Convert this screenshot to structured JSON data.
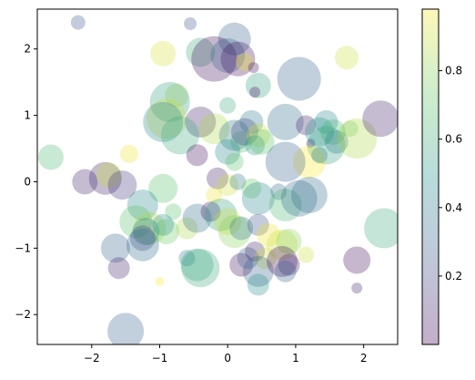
{
  "chart_data": {
    "type": "scatter",
    "title": "",
    "xlabel": "",
    "ylabel": "",
    "xlim": [
      -2.8,
      2.5
    ],
    "ylim": [
      -2.45,
      2.6
    ],
    "xticks": [
      -2,
      -1,
      0,
      1,
      2
    ],
    "xtick_labels": [
      "−2",
      "−1",
      "0",
      "1",
      "2"
    ],
    "yticks": [
      -2,
      -1,
      0,
      1,
      2
    ],
    "ytick_labels": [
      "−2",
      "−1",
      "0",
      "1",
      "2"
    ],
    "grid": false,
    "alpha": 0.3,
    "colormap": "viridis",
    "colorbar": {
      "range": [
        0.0,
        0.98
      ],
      "ticks": [
        0.2,
        0.4,
        0.6,
        0.8
      ],
      "tick_labels": [
        "0.2",
        "0.4",
        "0.6",
        "0.8"
      ]
    },
    "points": [
      {
        "x": -2.2,
        "y": 2.4,
        "c": 0.25,
        "s": 0.25
      },
      {
        "x": -0.55,
        "y": 2.38,
        "c": 0.25,
        "s": 0.2
      },
      {
        "x": 0.1,
        "y": 2.15,
        "c": 0.3,
        "s": 0.75
      },
      {
        "x": -0.95,
        "y": 1.93,
        "c": 0.92,
        "s": 0.55
      },
      {
        "x": -0.4,
        "y": 1.95,
        "c": 0.6,
        "s": 0.65
      },
      {
        "x": -0.2,
        "y": 1.85,
        "c": 0.05,
        "s": 1.1
      },
      {
        "x": 0.0,
        "y": 1.9,
        "c": 0.3,
        "s": 0.8
      },
      {
        "x": 0.15,
        "y": 1.85,
        "c": 0.05,
        "s": 0.8
      },
      {
        "x": 0.25,
        "y": 1.8,
        "c": 0.95,
        "s": 0.35
      },
      {
        "x": 1.75,
        "y": 1.87,
        "c": 0.9,
        "s": 0.5
      },
      {
        "x": 0.38,
        "y": 1.72,
        "c": 0.03,
        "s": 0.15
      },
      {
        "x": 1.05,
        "y": 1.55,
        "c": 0.3,
        "s": 1.05
      },
      {
        "x": 0.45,
        "y": 1.45,
        "c": 0.55,
        "s": 0.55
      },
      {
        "x": 0.4,
        "y": 1.35,
        "c": 0.05,
        "s": 0.15
      },
      {
        "x": -0.75,
        "y": 1.3,
        "c": 0.85,
        "s": 0.5
      },
      {
        "x": -0.85,
        "y": 1.2,
        "c": 0.55,
        "s": 0.95
      },
      {
        "x": 0.0,
        "y": 1.15,
        "c": 0.6,
        "s": 0.3
      },
      {
        "x": -0.9,
        "y": 0.95,
        "c": 0.9,
        "s": 0.95
      },
      {
        "x": -0.95,
        "y": 0.9,
        "c": 0.45,
        "s": 0.95
      },
      {
        "x": -0.4,
        "y": 0.9,
        "c": 0.1,
        "s": 0.7
      },
      {
        "x": -0.7,
        "y": 0.7,
        "c": 0.6,
        "s": 0.9
      },
      {
        "x": -0.2,
        "y": 0.8,
        "c": 0.85,
        "s": 0.7
      },
      {
        "x": 0.2,
        "y": 0.6,
        "c": 0.7,
        "s": 0.45
      },
      {
        "x": 0.35,
        "y": 0.9,
        "c": 0.4,
        "s": 0.5
      },
      {
        "x": 0.1,
        "y": 0.7,
        "c": 0.4,
        "s": 0.7
      },
      {
        "x": 0.25,
        "y": 0.75,
        "c": 0.2,
        "s": 0.6
      },
      {
        "x": 0.45,
        "y": 0.7,
        "c": 0.9,
        "s": 0.5
      },
      {
        "x": 0.4,
        "y": 0.55,
        "c": 0.5,
        "s": 0.4
      },
      {
        "x": 0.5,
        "y": 0.6,
        "c": 0.7,
        "s": 0.55
      },
      {
        "x": 0.85,
        "y": 0.9,
        "c": 0.35,
        "s": 0.85
      },
      {
        "x": 1.15,
        "y": 0.85,
        "c": 0.1,
        "s": 0.4
      },
      {
        "x": 1.45,
        "y": 0.9,
        "c": 0.45,
        "s": 0.5
      },
      {
        "x": 1.35,
        "y": 0.75,
        "c": 0.5,
        "s": 0.65
      },
      {
        "x": 1.55,
        "y": 0.75,
        "c": 0.65,
        "s": 0.55
      },
      {
        "x": 1.8,
        "y": 0.8,
        "c": 0.75,
        "s": 0.3
      },
      {
        "x": 1.45,
        "y": 0.55,
        "c": 0.55,
        "s": 0.9
      },
      {
        "x": 1.6,
        "y": 0.6,
        "c": 0.4,
        "s": 0.5
      },
      {
        "x": 1.9,
        "y": 0.65,
        "c": 0.85,
        "s": 0.95
      },
      {
        "x": 2.25,
        "y": 0.95,
        "c": 0.1,
        "s": 0.85
      },
      {
        "x": 1.22,
        "y": 0.58,
        "c": 0.15,
        "s": 0.1
      },
      {
        "x": 1.2,
        "y": 0.3,
        "c": 0.98,
        "s": 0.75
      },
      {
        "x": 0.85,
        "y": 0.3,
        "c": 0.3,
        "s": 0.95
      },
      {
        "x": 1.35,
        "y": 0.4,
        "c": 0.4,
        "s": 0.3
      },
      {
        "x": -2.6,
        "y": 0.37,
        "c": 0.65,
        "s": 0.55
      },
      {
        "x": -1.45,
        "y": 0.42,
        "c": 0.95,
        "s": 0.35
      },
      {
        "x": -2.1,
        "y": 0.0,
        "c": 0.1,
        "s": 0.55
      },
      {
        "x": -1.8,
        "y": 0.05,
        "c": 0.1,
        "s": 0.75
      },
      {
        "x": -1.75,
        "y": 0.1,
        "c": 0.9,
        "s": 0.55
      },
      {
        "x": -1.55,
        "y": -0.05,
        "c": 0.15,
        "s": 0.65
      },
      {
        "x": -0.95,
        "y": -0.1,
        "c": 0.7,
        "s": 0.65
      },
      {
        "x": -0.45,
        "y": 0.4,
        "c": 0.05,
        "s": 0.45
      },
      {
        "x": 0.0,
        "y": 0.45,
        "c": 0.45,
        "s": 0.55
      },
      {
        "x": 0.1,
        "y": 0.3,
        "c": 0.7,
        "s": 0.35
      },
      {
        "x": -0.15,
        "y": 0.05,
        "c": 0.1,
        "s": 0.45
      },
      {
        "x": 0.0,
        "y": -0.05,
        "c": 0.9,
        "s": 0.45
      },
      {
        "x": 0.15,
        "y": 0.0,
        "c": 0.4,
        "s": 0.3
      },
      {
        "x": 0.35,
        "y": -0.1,
        "c": 0.75,
        "s": 0.4
      },
      {
        "x": 0.75,
        "y": -0.15,
        "c": 0.35,
        "s": 0.3
      },
      {
        "x": 0.45,
        "y": -0.25,
        "c": 0.45,
        "s": 0.75
      },
      {
        "x": 0.85,
        "y": -0.35,
        "c": 0.65,
        "s": 0.75
      },
      {
        "x": 1.05,
        "y": -0.25,
        "c": 0.35,
        "s": 0.85
      },
      {
        "x": 1.2,
        "y": -0.2,
        "c": 0.35,
        "s": 0.85
      },
      {
        "x": -0.2,
        "y": -0.2,
        "c": 0.95,
        "s": 0.3
      },
      {
        "x": -1.25,
        "y": -0.35,
        "c": 0.45,
        "s": 0.7
      },
      {
        "x": -1.35,
        "y": -0.6,
        "c": 0.7,
        "s": 0.75
      },
      {
        "x": -1.15,
        "y": -0.7,
        "c": 0.85,
        "s": 0.75
      },
      {
        "x": -1.2,
        "y": -0.75,
        "c": 0.4,
        "s": 0.6
      },
      {
        "x": -1.25,
        "y": -0.85,
        "c": 0.2,
        "s": 0.55
      },
      {
        "x": -1.25,
        "y": -0.95,
        "c": 0.35,
        "s": 0.75
      },
      {
        "x": -0.9,
        "y": -0.75,
        "c": 0.75,
        "s": 0.55
      },
      {
        "x": -0.8,
        "y": -0.45,
        "c": 0.7,
        "s": 0.3
      },
      {
        "x": -0.6,
        "y": -0.7,
        "c": 0.85,
        "s": 0.45
      },
      {
        "x": -0.45,
        "y": -0.55,
        "c": 0.35,
        "s": 0.65
      },
      {
        "x": -0.25,
        "y": -0.45,
        "c": 0.05,
        "s": 0.4
      },
      {
        "x": -0.1,
        "y": -0.5,
        "c": 0.55,
        "s": 0.75
      },
      {
        "x": 0.0,
        "y": -0.6,
        "c": 0.9,
        "s": 0.6
      },
      {
        "x": 0.1,
        "y": -0.75,
        "c": 0.8,
        "s": 0.75
      },
      {
        "x": 0.2,
        "y": -0.7,
        "c": 0.4,
        "s": 0.5
      },
      {
        "x": 0.45,
        "y": -0.65,
        "c": 0.25,
        "s": 0.45
      },
      {
        "x": 0.6,
        "y": -0.8,
        "c": 0.95,
        "s": 0.5
      },
      {
        "x": 0.8,
        "y": -0.95,
        "c": 0.9,
        "s": 0.7
      },
      {
        "x": 0.9,
        "y": -0.9,
        "c": 0.8,
        "s": 0.55
      },
      {
        "x": 1.15,
        "y": -1.1,
        "c": 0.9,
        "s": 0.3
      },
      {
        "x": 2.3,
        "y": -0.7,
        "c": 0.6,
        "s": 0.95
      },
      {
        "x": -0.95,
        "y": -0.65,
        "c": 0.5,
        "s": 0.45
      },
      {
        "x": -0.6,
        "y": -1.15,
        "c": 0.4,
        "s": 0.3
      },
      {
        "x": -0.45,
        "y": -1.25,
        "c": 0.55,
        "s": 0.75
      },
      {
        "x": -0.4,
        "y": -1.3,
        "c": 0.6,
        "s": 0.9
      },
      {
        "x": 0.2,
        "y": -1.25,
        "c": 0.05,
        "s": 0.5
      },
      {
        "x": 0.3,
        "y": -1.15,
        "c": 0.3,
        "s": 0.45
      },
      {
        "x": 0.4,
        "y": -1.05,
        "c": 0.1,
        "s": 0.4
      },
      {
        "x": 0.55,
        "y": -1.15,
        "c": 0.9,
        "s": 0.45
      },
      {
        "x": 0.45,
        "y": -1.35,
        "c": 0.3,
        "s": 0.7
      },
      {
        "x": 0.8,
        "y": -1.2,
        "c": 0.05,
        "s": 0.7
      },
      {
        "x": 0.9,
        "y": -1.25,
        "c": 0.1,
        "s": 0.45
      },
      {
        "x": 0.85,
        "y": -1.35,
        "c": 0.3,
        "s": 0.45
      },
      {
        "x": 0.45,
        "y": -1.55,
        "c": 0.5,
        "s": 0.45
      },
      {
        "x": -1.65,
        "y": -1.0,
        "c": 0.3,
        "s": 0.65
      },
      {
        "x": -1.6,
        "y": -1.3,
        "c": 0.1,
        "s": 0.45
      },
      {
        "x": -1.0,
        "y": -1.5,
        "c": 0.98,
        "s": 0.1
      },
      {
        "x": 1.9,
        "y": -1.18,
        "c": 0.05,
        "s": 0.6
      },
      {
        "x": 1.9,
        "y": -1.6,
        "c": 0.1,
        "s": 0.15
      },
      {
        "x": -1.5,
        "y": -2.25,
        "c": 0.3,
        "s": 0.85
      }
    ]
  }
}
